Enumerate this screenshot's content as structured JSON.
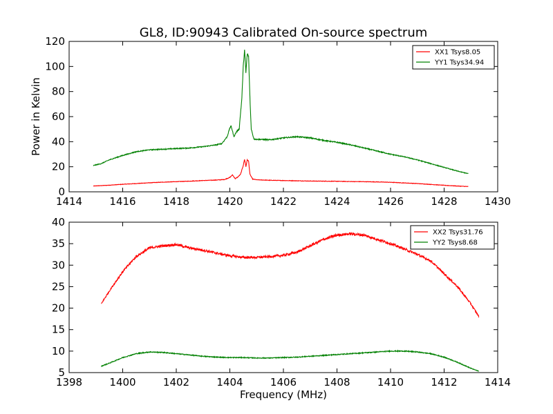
{
  "title": "GL8, ID:90943 Calibrated On-source spectrum",
  "chart_data": [
    {
      "type": "line",
      "title": "GL8, ID:90943 Calibrated On-source spectrum",
      "xlabel": "",
      "ylabel": "Power in Kelvin",
      "xlim": [
        1414,
        1430
      ],
      "ylim": [
        0,
        120
      ],
      "xticks": [
        "1414",
        "1416",
        "1418",
        "1420",
        "1422",
        "1424",
        "1426",
        "1428",
        "1430"
      ],
      "yticks": [
        "0",
        "20",
        "40",
        "60",
        "80",
        "100",
        "120"
      ],
      "grid": false,
      "legend": "top-right",
      "series": [
        {
          "name": "XX1 Tsys8.05",
          "color": "#ff0000",
          "points": [
            [
              1414.9,
              4.6
            ],
            [
              1415.5,
              5.3
            ],
            [
              1416.0,
              6.0
            ],
            [
              1416.5,
              6.6
            ],
            [
              1417.0,
              7.2
            ],
            [
              1417.5,
              7.7
            ],
            [
              1418.0,
              8.1
            ],
            [
              1418.5,
              8.5
            ],
            [
              1419.0,
              9.0
            ],
            [
              1419.5,
              9.4
            ],
            [
              1419.8,
              9.8
            ],
            [
              1420.0,
              11.5
            ],
            [
              1420.1,
              13.5
            ],
            [
              1420.2,
              10.5
            ],
            [
              1420.3,
              11.8
            ],
            [
              1420.4,
              14.0
            ],
            [
              1420.5,
              21.0
            ],
            [
              1420.55,
              26.0
            ],
            [
              1420.6,
              20.0
            ],
            [
              1420.65,
              25.5
            ],
            [
              1420.7,
              24.5
            ],
            [
              1420.75,
              14.0
            ],
            [
              1420.85,
              10.2
            ],
            [
              1421.0,
              9.6
            ],
            [
              1421.5,
              9.2
            ],
            [
              1422.0,
              9.0
            ],
            [
              1422.5,
              8.8
            ],
            [
              1423.0,
              8.6
            ],
            [
              1423.5,
              8.5
            ],
            [
              1424.0,
              8.4
            ],
            [
              1424.5,
              8.2
            ],
            [
              1425.0,
              8.1
            ],
            [
              1425.5,
              7.9
            ],
            [
              1426.0,
              7.6
            ],
            [
              1426.5,
              7.1
            ],
            [
              1427.0,
              6.6
            ],
            [
              1427.5,
              5.9
            ],
            [
              1428.0,
              5.2
            ],
            [
              1428.5,
              4.6
            ],
            [
              1428.9,
              4.2
            ]
          ]
        },
        {
          "name": "YY1 Tsys34.94",
          "color": "#008000",
          "points": [
            [
              1414.9,
              21.0
            ],
            [
              1415.2,
              22.5
            ],
            [
              1415.5,
              25.5
            ],
            [
              1416.0,
              29.0
            ],
            [
              1416.5,
              32.0
            ],
            [
              1417.0,
              33.5
            ],
            [
              1417.5,
              34.0
            ],
            [
              1418.0,
              34.5
            ],
            [
              1418.5,
              35.0
            ],
            [
              1419.0,
              36.0
            ],
            [
              1419.5,
              37.5
            ],
            [
              1419.7,
              38.5
            ],
            [
              1419.9,
              44.0
            ],
            [
              1420.0,
              51.0
            ],
            [
              1420.05,
              52.5
            ],
            [
              1420.15,
              44.0
            ],
            [
              1420.25,
              48.0
            ],
            [
              1420.35,
              50.0
            ],
            [
              1420.4,
              63.0
            ],
            [
              1420.45,
              75.0
            ],
            [
              1420.5,
              100.0
            ],
            [
              1420.55,
              113.0
            ],
            [
              1420.6,
              95.0
            ],
            [
              1420.65,
              110.0
            ],
            [
              1420.7,
              108.0
            ],
            [
              1420.75,
              75.0
            ],
            [
              1420.8,
              50.0
            ],
            [
              1420.9,
              42.0
            ],
            [
              1421.5,
              41.5
            ],
            [
              1422.0,
              43.0
            ],
            [
              1422.5,
              44.0
            ],
            [
              1423.0,
              43.0
            ],
            [
              1423.5,
              41.0
            ],
            [
              1424.0,
              39.5
            ],
            [
              1424.5,
              37.5
            ],
            [
              1425.0,
              35.0
            ],
            [
              1425.5,
              32.5
            ],
            [
              1426.0,
              30.0
            ],
            [
              1426.5,
              28.0
            ],
            [
              1427.0,
              25.5
            ],
            [
              1427.5,
              22.5
            ],
            [
              1428.0,
              19.5
            ],
            [
              1428.5,
              16.5
            ],
            [
              1428.9,
              14.5
            ]
          ]
        }
      ]
    },
    {
      "type": "line",
      "title": "",
      "xlabel": "Frequency (MHz)",
      "ylabel": "",
      "xlim": [
        1398,
        1414
      ],
      "ylim": [
        5,
        40
      ],
      "xticks": [
        "1398",
        "1400",
        "1402",
        "1404",
        "1406",
        "1408",
        "1410",
        "1412",
        "1414"
      ],
      "yticks": [
        "5",
        "10",
        "15",
        "20",
        "25",
        "30",
        "35",
        "40"
      ],
      "grid": false,
      "legend": "top-right",
      "series": [
        {
          "name": "XX2 Tsys31.76",
          "color": "#ff0000",
          "points": [
            [
              1399.2,
              21.0
            ],
            [
              1399.5,
              24.0
            ],
            [
              1400.0,
              28.5
            ],
            [
              1400.5,
              32.0
            ],
            [
              1401.0,
              34.0
            ],
            [
              1401.5,
              34.5
            ],
            [
              1402.0,
              34.8
            ],
            [
              1402.5,
              34.0
            ],
            [
              1403.0,
              33.5
            ],
            [
              1403.5,
              32.8
            ],
            [
              1404.0,
              32.2
            ],
            [
              1404.5,
              31.8
            ],
            [
              1405.0,
              31.8
            ],
            [
              1405.5,
              32.0
            ],
            [
              1406.0,
              32.3
            ],
            [
              1406.5,
              33.0
            ],
            [
              1407.0,
              34.5
            ],
            [
              1407.5,
              36.0
            ],
            [
              1408.0,
              37.0
            ],
            [
              1408.5,
              37.3
            ],
            [
              1409.0,
              37.0
            ],
            [
              1409.5,
              36.0
            ],
            [
              1410.0,
              35.0
            ],
            [
              1410.5,
              33.8
            ],
            [
              1411.0,
              32.5
            ],
            [
              1411.5,
              31.0
            ],
            [
              1412.0,
              28.0
            ],
            [
              1412.5,
              25.0
            ],
            [
              1413.0,
              21.0
            ],
            [
              1413.3,
              18.0
            ]
          ]
        },
        {
          "name": "YY2 Tsys8.68",
          "color": "#008000",
          "points": [
            [
              1399.2,
              6.5
            ],
            [
              1399.5,
              7.2
            ],
            [
              1400.0,
              8.5
            ],
            [
              1400.5,
              9.4
            ],
            [
              1401.0,
              9.8
            ],
            [
              1401.5,
              9.7
            ],
            [
              1402.0,
              9.4
            ],
            [
              1402.5,
              9.1
            ],
            [
              1403.0,
              8.8
            ],
            [
              1403.5,
              8.6
            ],
            [
              1404.0,
              8.5
            ],
            [
              1404.5,
              8.5
            ],
            [
              1405.0,
              8.4
            ],
            [
              1405.5,
              8.4
            ],
            [
              1406.0,
              8.5
            ],
            [
              1406.5,
              8.6
            ],
            [
              1407.0,
              8.8
            ],
            [
              1407.5,
              9.0
            ],
            [
              1408.0,
              9.2
            ],
            [
              1408.5,
              9.4
            ],
            [
              1409.0,
              9.6
            ],
            [
              1409.5,
              9.8
            ],
            [
              1410.0,
              10.0
            ],
            [
              1410.5,
              10.0
            ],
            [
              1411.0,
              9.8
            ],
            [
              1411.5,
              9.4
            ],
            [
              1412.0,
              8.6
            ],
            [
              1412.5,
              7.4
            ],
            [
              1413.0,
              6.0
            ],
            [
              1413.3,
              5.3
            ]
          ]
        }
      ]
    }
  ]
}
